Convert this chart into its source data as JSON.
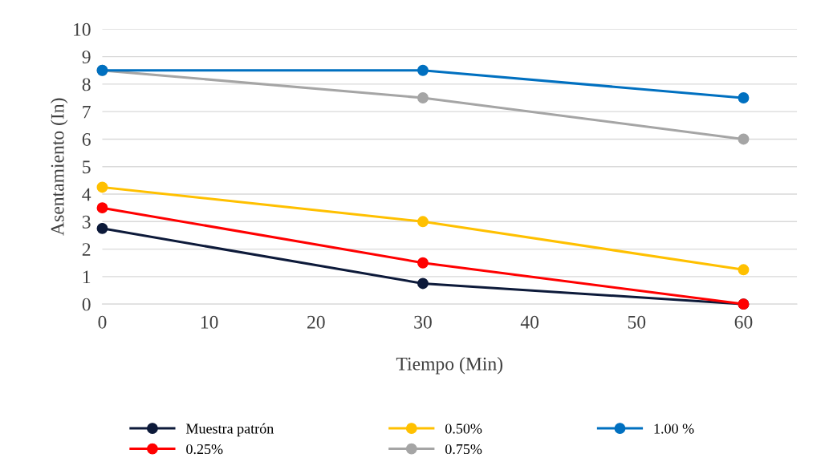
{
  "chart_data": {
    "type": "line",
    "xlabel": "Tiempo (Min)",
    "ylabel": "Asentamiento (In)",
    "x": [
      0,
      30,
      60
    ],
    "xlim": [
      0,
      65
    ],
    "xticks": [
      0,
      10,
      20,
      30,
      40,
      50,
      60
    ],
    "ylim": [
      0,
      10
    ],
    "yticks": [
      0,
      1,
      2,
      3,
      4,
      5,
      6,
      7,
      8,
      9,
      10
    ],
    "grid": "y",
    "legend": "bottom",
    "marker": "circle",
    "line_style": "solid",
    "series": [
      {
        "name": "Muestra patrón",
        "color": "#0d1a3a",
        "values": [
          2.75,
          0.75,
          0
        ]
      },
      {
        "name": "0.25%",
        "color": "#ff0000",
        "values": [
          3.5,
          1.5,
          0
        ]
      },
      {
        "name": "0.50%",
        "color": "#ffc000",
        "values": [
          4.25,
          3,
          1.25
        ]
      },
      {
        "name": "0.75%",
        "color": "#a5a5a5",
        "values": [
          8.5,
          7.5,
          6
        ]
      },
      {
        "name": "1.00 %",
        "color": "#0070c0",
        "values": [
          8.5,
          8.5,
          7.5
        ]
      }
    ]
  }
}
